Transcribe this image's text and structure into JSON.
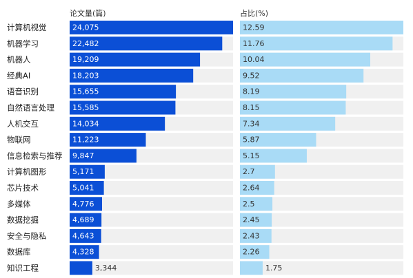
{
  "chart_data": {
    "type": "bar",
    "orientation": "horizontal",
    "categories": [
      "计算机视觉",
      "机器学习",
      "机器人",
      "经典AI",
      "语音识别",
      "自然语言处理",
      "人机交互",
      "物联网",
      "信息检索与推荐",
      "计算机图形",
      "芯片技术",
      "多媒体",
      "数据挖掘",
      "安全与隐私",
      "数据库",
      "知识工程"
    ],
    "series": [
      {
        "name": "论文量(篇)",
        "values": [
          24075,
          22482,
          19209,
          18203,
          15655,
          15585,
          14034,
          11223,
          9847,
          5171,
          5041,
          4776,
          4689,
          4643,
          4328,
          3344
        ],
        "labels": [
          "24,075",
          "22,482",
          "19,209",
          "18,203",
          "15,655",
          "15,585",
          "14,034",
          "11,223",
          "9,847",
          "5,171",
          "5,041",
          "4,776",
          "4,689",
          "4,643",
          "4,328",
          "3,344"
        ],
        "color": "#0b4fd6",
        "track_color": "#f0f0f0"
      },
      {
        "name": "占比(%)",
        "values": [
          12.59,
          11.76,
          10.04,
          9.52,
          8.19,
          8.15,
          7.34,
          5.87,
          5.15,
          2.7,
          2.64,
          2.5,
          2.45,
          2.43,
          2.26,
          1.75
        ],
        "labels": [
          "12.59",
          "11.76",
          "10.04",
          "9.52",
          "8.19",
          "8.15",
          "7.34",
          "5.87",
          "5.15",
          "2.7",
          "2.64",
          "2.5",
          "2.45",
          "2.43",
          "2.26",
          "1.75"
        ],
        "color": "#a9dbf6",
        "track_color": "#f0f0f0"
      }
    ],
    "headers": [
      "论文量(篇)",
      "占比(%)"
    ],
    "title": "",
    "xlabel": "",
    "ylabel": "",
    "grid": false,
    "legend": "none"
  }
}
